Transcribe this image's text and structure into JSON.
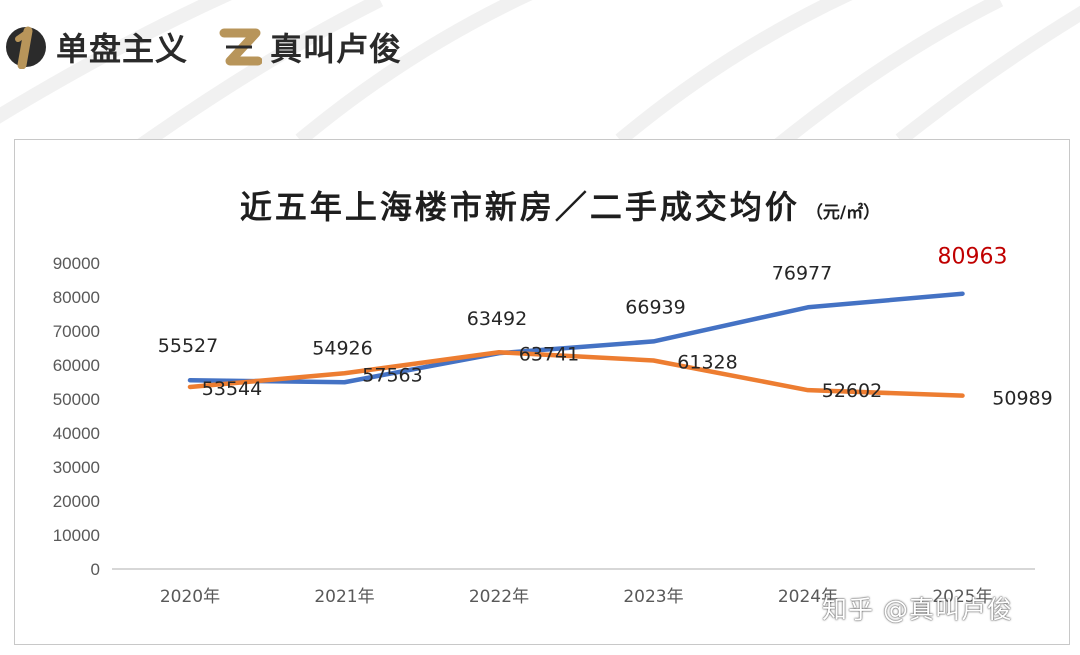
{
  "brand": {
    "item1_number": "1",
    "item1_label": "单盘主义",
    "item2_number": "2",
    "item2_label": "真叫卢俊",
    "accent_color": "#b8955a"
  },
  "watermark": "知乎 @真叫卢俊",
  "chart_data": {
    "type": "line",
    "title": "近五年上海楼市新房／二手成交均价",
    "unit": "（元/㎡）",
    "categories": [
      "2020年",
      "2021年",
      "2022年",
      "2023年",
      "2024年",
      "2025年"
    ],
    "y_ticks": [
      "0",
      "10000",
      "20000",
      "30000",
      "40000",
      "50000",
      "60000",
      "70000",
      "80000",
      "90000"
    ],
    "ylim": [
      0,
      90000
    ],
    "grid": false,
    "legend": "none",
    "series": [
      {
        "color": "#4472c4",
        "values": [
          55527,
          54926,
          63492,
          66939,
          76977,
          80963
        ],
        "labels": [
          "55527",
          "54926",
          "63492",
          "66939",
          "76977",
          "80963"
        ],
        "highlight_last_color": "#c00000"
      },
      {
        "color": "#ed7d31",
        "values": [
          53544,
          57563,
          63741,
          61328,
          52602,
          50989
        ],
        "labels": [
          "53544",
          "57563",
          "63741",
          "61328",
          "52602",
          "50989"
        ]
      }
    ]
  }
}
